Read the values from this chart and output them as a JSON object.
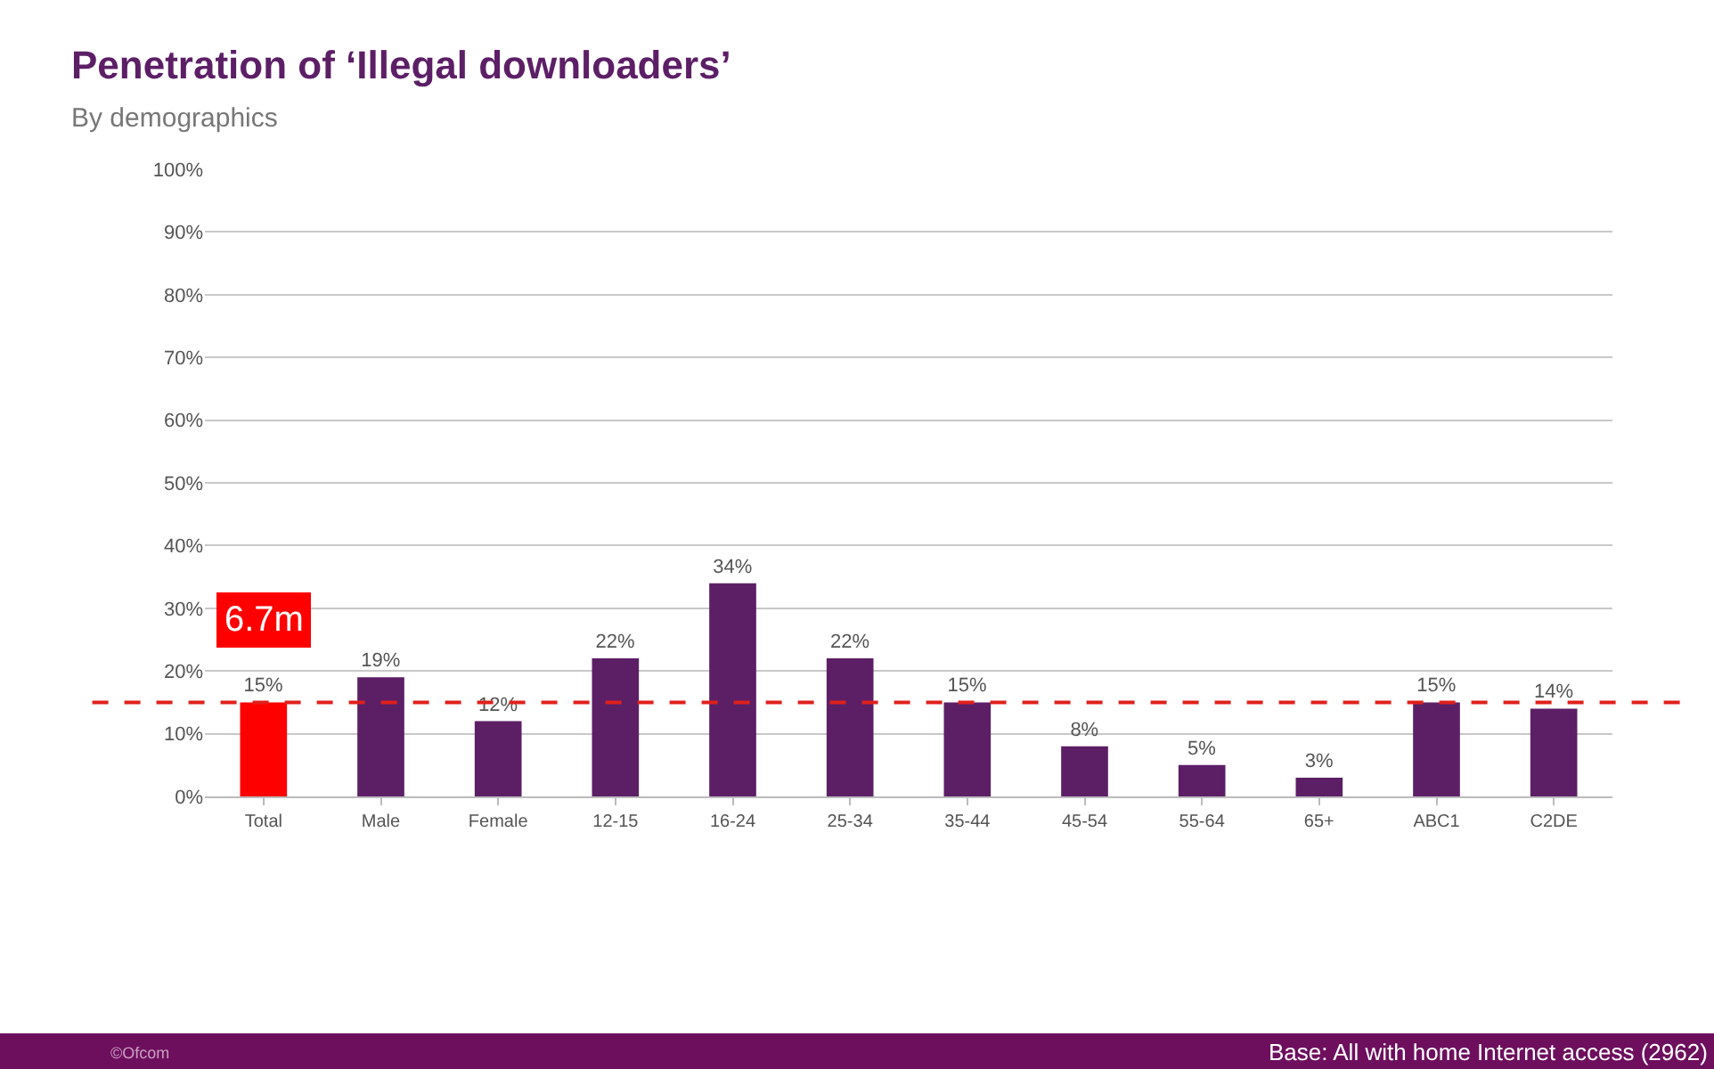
{
  "chart_data": {
    "type": "bar",
    "title": "Penetration of ‘Illegal downloaders’",
    "subtitle": "By demographics",
    "categories": [
      "Total",
      "Male",
      "Female",
      "12-15",
      "16-24",
      "25-34",
      "35-44",
      "45-54",
      "55-64",
      "65+",
      "ABC1",
      "C2DE"
    ],
    "values": [
      15,
      19,
      12,
      22,
      34,
      22,
      15,
      8,
      5,
      3,
      15,
      14
    ],
    "value_labels": [
      "15%",
      "19%",
      "12%",
      "22%",
      "34%",
      "22%",
      "15%",
      "8%",
      "5%",
      "3%",
      "15%",
      "14%"
    ],
    "colors": [
      "#ff0000",
      "#5c1f66",
      "#5c1f66",
      "#5c1f66",
      "#5c1f66",
      "#5c1f66",
      "#5c1f66",
      "#5c1f66",
      "#5c1f66",
      "#5c1f66",
      "#5c1f66",
      "#5c1f66"
    ],
    "ylim": [
      0,
      100
    ],
    "yticks": [
      {
        "value": 0,
        "label": "0%"
      },
      {
        "value": 10,
        "label": "10%"
      },
      {
        "value": 20,
        "label": "20%"
      },
      {
        "value": 30,
        "label": "30%"
      },
      {
        "value": 40,
        "label": "40%"
      },
      {
        "value": 50,
        "label": "50%"
      },
      {
        "value": 60,
        "label": "60%"
      },
      {
        "value": 70,
        "label": "70%"
      },
      {
        "value": 80,
        "label": "80%"
      },
      {
        "value": 90,
        "label": "90%"
      },
      {
        "value": 100,
        "label": "100%"
      }
    ],
    "grid": "y",
    "ref_lines": [
      {
        "axis": "y",
        "value": 15,
        "color": "#e0201b",
        "line_style": "dashed"
      }
    ],
    "annotations": [
      "6.7m",
      "©Ofcom",
      "Base: All with home Internet access (2962)"
    ]
  }
}
